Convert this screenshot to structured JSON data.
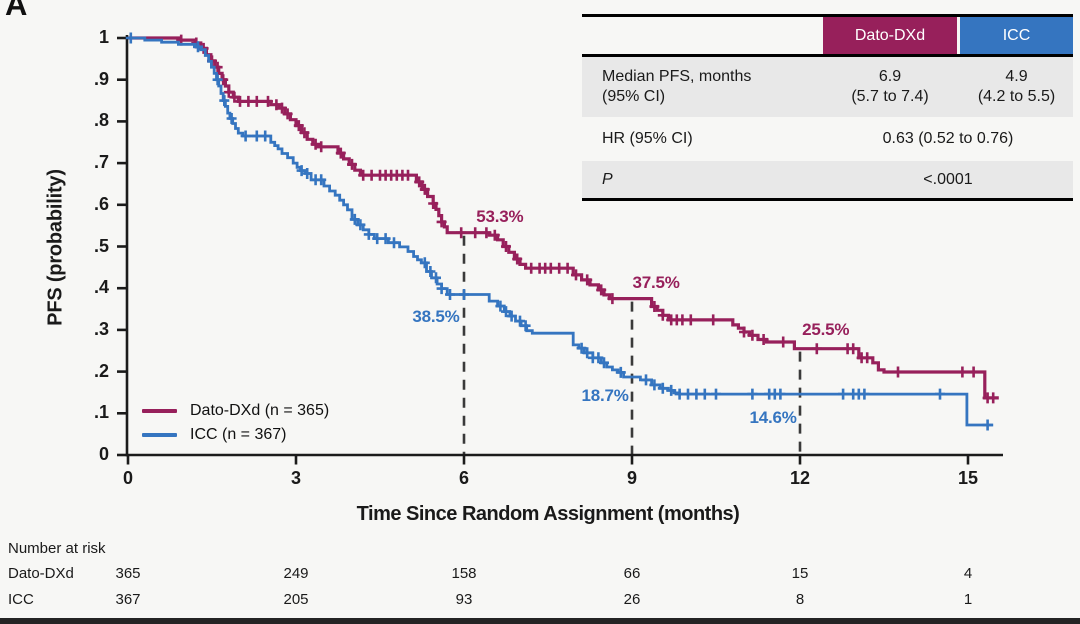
{
  "panel_label": "A",
  "colors": {
    "dato": "#97205B",
    "icc": "#3575C0",
    "axis": "#1B1B1B",
    "dashed_line": "#3A3A3A",
    "table_row_gray": "#E8E8E8",
    "page_background": "#F7F7F5",
    "bottom_bar": "#242424",
    "text": "#1A1A1A"
  },
  "summary_table": {
    "header_dato": "Dato-DXd",
    "header_icc": "ICC",
    "median_label_line1": "Median PFS, months",
    "median_label_line2": "(95% CI)",
    "median_dato_line1": "6.9",
    "median_dato_line2": "(5.7 to 7.4)",
    "median_icc_line1": "4.9",
    "median_icc_line2": "(4.2 to 5.5)",
    "hr_label": "HR (95% CI)",
    "hr_value": "0.63 (0.52 to 0.76)",
    "p_label": "P",
    "p_value": "<.0001"
  },
  "number_at_risk": {
    "title": "Number at risk",
    "rows": [
      {
        "label": "Dato-DXd",
        "values": [
          "365",
          "249",
          "158",
          "66",
          "15",
          "4"
        ]
      },
      {
        "label": "ICC",
        "values": [
          "367",
          "205",
          "93",
          "26",
          "8",
          "1"
        ]
      }
    ]
  },
  "chart_data": {
    "type": "line",
    "variant": "kaplan-meier-step",
    "xlabel": "Time Since Random Assignment (months)",
    "ylabel": "PFS (probability)",
    "xlim": [
      0,
      15.6
    ],
    "ylim": [
      0,
      1
    ],
    "grid": false,
    "legend_position": "lower-left",
    "xticks": [
      0,
      3,
      6,
      9,
      12,
      15
    ],
    "ytick_labels": [
      "1",
      ".9",
      ".8",
      ".7",
      ".6",
      ".5",
      ".4",
      ".3",
      ".2",
      ".1",
      "0"
    ],
    "dashed_lines": [
      {
        "month": 6,
        "top_prob": 0.533
      },
      {
        "month": 9,
        "top_prob": 0.375
      },
      {
        "month": 12,
        "top_prob": 0.255
      }
    ],
    "annotations": [
      {
        "text": "53.3%",
        "series": 0,
        "month": 6.64,
        "prob": 0.571
      },
      {
        "text": "37.5%",
        "series": 0,
        "month": 9.43,
        "prob": 0.413
      },
      {
        "text": "25.5%",
        "series": 0,
        "month": 12.46,
        "prob": 0.3
      },
      {
        "text": "38.5%",
        "series": 1,
        "month": 5.5,
        "prob": 0.331
      },
      {
        "text": "18.7%",
        "series": 1,
        "month": 8.52,
        "prob": 0.142
      },
      {
        "text": "14.6%",
        "series": 1,
        "month": 11.52,
        "prob": 0.089
      }
    ],
    "series": [
      {
        "name": "Dato-DXd (n = 365)",
        "n": 365,
        "color": "#97205B",
        "end_month": 15.55,
        "steps": [
          [
            0,
            1
          ],
          [
            0.9,
            0.995
          ],
          [
            1.2,
            0.988
          ],
          [
            1.3,
            0.975
          ],
          [
            1.4,
            0.96
          ],
          [
            1.48,
            0.945
          ],
          [
            1.55,
            0.93
          ],
          [
            1.62,
            0.915
          ],
          [
            1.68,
            0.9
          ],
          [
            1.74,
            0.885
          ],
          [
            1.8,
            0.87
          ],
          [
            1.88,
            0.858
          ],
          [
            1.97,
            0.848
          ],
          [
            2.55,
            0.84
          ],
          [
            2.7,
            0.832
          ],
          [
            2.8,
            0.818
          ],
          [
            2.9,
            0.804
          ],
          [
            3,
            0.79
          ],
          [
            3.1,
            0.773
          ],
          [
            3.2,
            0.757
          ],
          [
            3.3,
            0.745
          ],
          [
            3.4,
            0.739
          ],
          [
            3.75,
            0.724
          ],
          [
            3.85,
            0.71
          ],
          [
            3.95,
            0.697
          ],
          [
            4.05,
            0.683
          ],
          [
            4.15,
            0.671
          ],
          [
            5.15,
            0.655
          ],
          [
            5.25,
            0.637
          ],
          [
            5.35,
            0.62
          ],
          [
            5.45,
            0.603
          ],
          [
            5.5,
            0.589
          ],
          [
            5.55,
            0.574
          ],
          [
            5.6,
            0.559
          ],
          [
            5.65,
            0.547
          ],
          [
            5.7,
            0.533
          ],
          [
            6.45,
            0.527
          ],
          [
            6.6,
            0.516
          ],
          [
            6.7,
            0.5
          ],
          [
            6.8,
            0.486
          ],
          [
            6.9,
            0.47
          ],
          [
            7,
            0.457
          ],
          [
            7.1,
            0.448
          ],
          [
            7.95,
            0.432
          ],
          [
            8.1,
            0.42
          ],
          [
            8.25,
            0.408
          ],
          [
            8.4,
            0.396
          ],
          [
            8.5,
            0.384
          ],
          [
            8.6,
            0.375
          ],
          [
            9.35,
            0.356
          ],
          [
            9.45,
            0.347
          ],
          [
            9.55,
            0.335
          ],
          [
            9.65,
            0.324
          ],
          [
            10.8,
            0.312
          ],
          [
            10.9,
            0.304
          ],
          [
            11,
            0.295
          ],
          [
            11.1,
            0.287
          ],
          [
            11.25,
            0.277
          ],
          [
            11.4,
            0.271
          ],
          [
            11.9,
            0.255
          ],
          [
            13.05,
            0.233
          ],
          [
            13.3,
            0.221
          ],
          [
            13.4,
            0.204
          ],
          [
            13.5,
            0.199
          ],
          [
            15.3,
            0.137
          ]
        ],
        "censors": [
          0.95,
          1.22,
          1.35,
          1.5,
          1.6,
          1.7,
          1.8,
          1.9,
          2.0,
          2.15,
          2.3,
          2.5,
          2.65,
          2.75,
          2.85,
          3.05,
          3.15,
          3.35,
          3.45,
          3.8,
          4.0,
          4.2,
          4.35,
          4.5,
          4.6,
          4.7,
          4.8,
          4.9,
          5.0,
          5.2,
          5.3,
          5.45,
          5.6,
          5.95,
          6.2,
          6.4,
          6.55,
          6.75,
          6.95,
          7.2,
          7.35,
          7.45,
          7.55,
          7.7,
          7.85,
          8.0,
          8.2,
          8.45,
          8.65,
          9.4,
          9.55,
          9.7,
          9.8,
          9.9,
          10.05,
          10.45,
          11.0,
          11.15,
          11.35,
          11.7,
          12.3,
          12.85,
          12.95,
          13.1,
          13.2,
          13.75,
          14.9,
          15.1,
          15.35,
          15.45
        ]
      },
      {
        "name": "ICC (n = 367)",
        "n": 367,
        "color": "#3575C0",
        "end_month": 15.45,
        "steps": [
          [
            0,
            1
          ],
          [
            0.3,
            0.995
          ],
          [
            0.6,
            0.99
          ],
          [
            0.9,
            0.985
          ],
          [
            1.2,
            0.979
          ],
          [
            1.3,
            0.972
          ],
          [
            1.38,
            0.958
          ],
          [
            1.44,
            0.944
          ],
          [
            1.49,
            0.93
          ],
          [
            1.54,
            0.915
          ],
          [
            1.58,
            0.9
          ],
          [
            1.62,
            0.885
          ],
          [
            1.66,
            0.867
          ],
          [
            1.7,
            0.85
          ],
          [
            1.74,
            0.836
          ],
          [
            1.78,
            0.82
          ],
          [
            1.82,
            0.807
          ],
          [
            1.87,
            0.795
          ],
          [
            1.92,
            0.783
          ],
          [
            1.97,
            0.772
          ],
          [
            2.05,
            0.765
          ],
          [
            2.55,
            0.75
          ],
          [
            2.62,
            0.742
          ],
          [
            2.68,
            0.734
          ],
          [
            2.75,
            0.723
          ],
          [
            2.85,
            0.713
          ],
          [
            2.95,
            0.7
          ],
          [
            3.02,
            0.69
          ],
          [
            3.08,
            0.682
          ],
          [
            3.17,
            0.675
          ],
          [
            3.27,
            0.66
          ],
          [
            3.5,
            0.645
          ],
          [
            3.6,
            0.633
          ],
          [
            3.7,
            0.623
          ],
          [
            3.78,
            0.611
          ],
          [
            3.85,
            0.6
          ],
          [
            3.92,
            0.588
          ],
          [
            4,
            0.565
          ],
          [
            4.1,
            0.552
          ],
          [
            4.2,
            0.54
          ],
          [
            4.3,
            0.529
          ],
          [
            4.4,
            0.519
          ],
          [
            4.65,
            0.509
          ],
          [
            4.85,
            0.499
          ],
          [
            5,
            0.488
          ],
          [
            5.1,
            0.476
          ],
          [
            5.17,
            0.468
          ],
          [
            5.24,
            0.461
          ],
          [
            5.33,
            0.44
          ],
          [
            5.42,
            0.425
          ],
          [
            5.52,
            0.41
          ],
          [
            5.6,
            0.399
          ],
          [
            5.7,
            0.385
          ],
          [
            6.45,
            0.369
          ],
          [
            6.6,
            0.357
          ],
          [
            6.72,
            0.344
          ],
          [
            6.82,
            0.333
          ],
          [
            6.92,
            0.321
          ],
          [
            7.02,
            0.31
          ],
          [
            7.12,
            0.298
          ],
          [
            7.22,
            0.292
          ],
          [
            7.95,
            0.264
          ],
          [
            8.05,
            0.256
          ],
          [
            8.15,
            0.245
          ],
          [
            8.3,
            0.233
          ],
          [
            8.45,
            0.221
          ],
          [
            8.55,
            0.211
          ],
          [
            8.65,
            0.204
          ],
          [
            8.75,
            0.198
          ],
          [
            8.85,
            0.187
          ],
          [
            9.15,
            0.18
          ],
          [
            9.35,
            0.168
          ],
          [
            9.5,
            0.16
          ],
          [
            9.65,
            0.155
          ],
          [
            9.75,
            0.149
          ],
          [
            9.85,
            0.146
          ],
          [
            14.98,
            0.072
          ]
        ],
        "censors": [
          0.05,
          1.25,
          1.6,
          1.72,
          1.85,
          2.1,
          2.3,
          2.45,
          3.1,
          3.2,
          3.35,
          3.45,
          4.05,
          4.15,
          4.3,
          4.45,
          4.6,
          4.75,
          5.3,
          5.4,
          5.5,
          5.6,
          5.75,
          6.0,
          6.65,
          6.75,
          6.85,
          7.0,
          7.1,
          8.1,
          8.2,
          8.3,
          8.4,
          8.5,
          8.8,
          9.25,
          9.4,
          9.55,
          9.7,
          9.85,
          10.0,
          10.15,
          10.3,
          10.5,
          11.15,
          11.45,
          11.55,
          11.65,
          12.77,
          12.95,
          13.05,
          13.15,
          14.5,
          15.35
        ]
      }
    ]
  }
}
